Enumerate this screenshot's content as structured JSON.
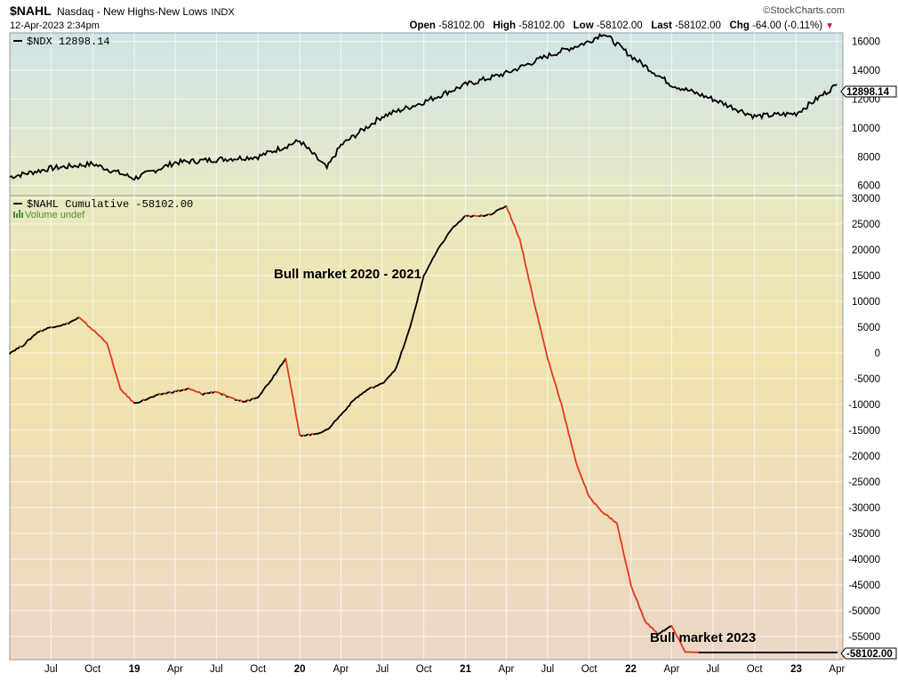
{
  "header": {
    "symbol": "$NAHL",
    "name": "Nasdaq - New Highs-New Lows",
    "exchange": "INDX",
    "datetime": "12-Apr-2023 2:34pm",
    "brand": "©StockCharts.com",
    "open_label": "Open",
    "open": "-58102.00",
    "high_label": "High",
    "high": "-58102.00",
    "low_label": "Low",
    "low": "-58102.00",
    "last_label": "Last",
    "last": "-58102.00",
    "chg_label": "Chg",
    "chg": "-64.00 (-0.11%)"
  },
  "colors": {
    "line": "#000000",
    "down_line": "#e23a1f",
    "label_bg": "#ffffff"
  },
  "chart_data": [
    {
      "type": "line",
      "legend": "$NDX 12898.14",
      "last_value": "12898.14",
      "y_ticks": [
        6000,
        8000,
        10000,
        12000,
        14000,
        16000
      ],
      "ylim": [
        5300,
        16600
      ],
      "x": [
        "2018-04",
        "2018-07",
        "2018-10",
        "2019-01",
        "2019-04",
        "2019-07",
        "2019-10",
        "2020-01",
        "2020-03",
        "2020-04",
        "2020-07",
        "2020-10",
        "2021-01",
        "2021-04",
        "2021-07",
        "2021-10",
        "2021-11",
        "2022-01",
        "2022-04",
        "2022-07",
        "2022-10",
        "2023-01",
        "2023-04"
      ],
      "y": [
        6600,
        7200,
        7500,
        6500,
        7600,
        7800,
        8000,
        9100,
        7200,
        8800,
        10800,
        11800,
        13000,
        13800,
        15000,
        16000,
        16600,
        15000,
        13000,
        12000,
        10800,
        11000,
        13000
      ]
    },
    {
      "type": "line",
      "legend": "$NAHL Cumulative -58102.00",
      "sub_legend": "Volume undef",
      "last_value": "-58102.00",
      "y_ticks": [
        30000,
        25000,
        20000,
        15000,
        10000,
        5000,
        0,
        -5000,
        -10000,
        -15000,
        -20000,
        -25000,
        -30000,
        -35000,
        -40000,
        -45000,
        -50000,
        -55000
      ],
      "ylim": [
        -59500,
        30500
      ],
      "x": [
        "2018-04",
        "2018-05",
        "2018-06",
        "2018-07",
        "2018-08",
        "2018-09",
        "2018-10",
        "2018-11",
        "2018-12",
        "2019-01",
        "2019-03",
        "2019-05",
        "2019-06",
        "2019-07",
        "2019-08",
        "2019-09",
        "2019-10",
        "2019-11",
        "2019-12",
        "2020-01",
        "2020-02",
        "2020-03",
        "2020-04",
        "2020-05",
        "2020-06",
        "2020-07",
        "2020-08",
        "2020-09",
        "2020-10",
        "2020-11",
        "2020-12",
        "2021-01",
        "2021-02",
        "2021-03",
        "2021-04",
        "2021-05",
        "2021-06",
        "2021-07",
        "2021-08",
        "2021-09",
        "2021-10",
        "2021-11",
        "2021-12",
        "2022-01",
        "2022-02",
        "2022-03",
        "2022-04",
        "2022-05",
        "2022-06",
        "2022-07",
        "2022-08",
        "2022-09",
        "2022-10",
        "2022-11",
        "2022-12",
        "2023-01",
        "2023-02",
        "2023-03",
        "2023-04"
      ],
      "y": [
        0,
        1500,
        4000,
        5000,
        5500,
        6800,
        4500,
        2000,
        -7000,
        -9800,
        -8000,
        -7000,
        -8000,
        -7500,
        -8800,
        -9500,
        -8500,
        -5000,
        -1000,
        -16000,
        -15800,
        -15000,
        -12000,
        -9000,
        -7000,
        -6000,
        -3000,
        5000,
        15000,
        20000,
        24000,
        26500,
        26500,
        27000,
        28500,
        22000,
        10000,
        -1000,
        -10000,
        -21000,
        -28000,
        -31000,
        -33000,
        -45000,
        -52000,
        -54500,
        -53000,
        -58000,
        -58102,
        -58102,
        -58102,
        -58102,
        -58102,
        -58102,
        -58102,
        -58102,
        -58102,
        -58102,
        -58102
      ],
      "annotations": [
        "Bull market 2020 - 2021",
        "Bull market 2023"
      ]
    }
  ],
  "x_axis_labels": [
    "Jul",
    "Oct",
    "19",
    "Apr",
    "Jul",
    "Oct",
    "20",
    "Apr",
    "Jul",
    "Oct",
    "21",
    "Apr",
    "Jul",
    "Oct",
    "22",
    "Apr",
    "Jul",
    "Oct",
    "23",
    "Apr"
  ]
}
